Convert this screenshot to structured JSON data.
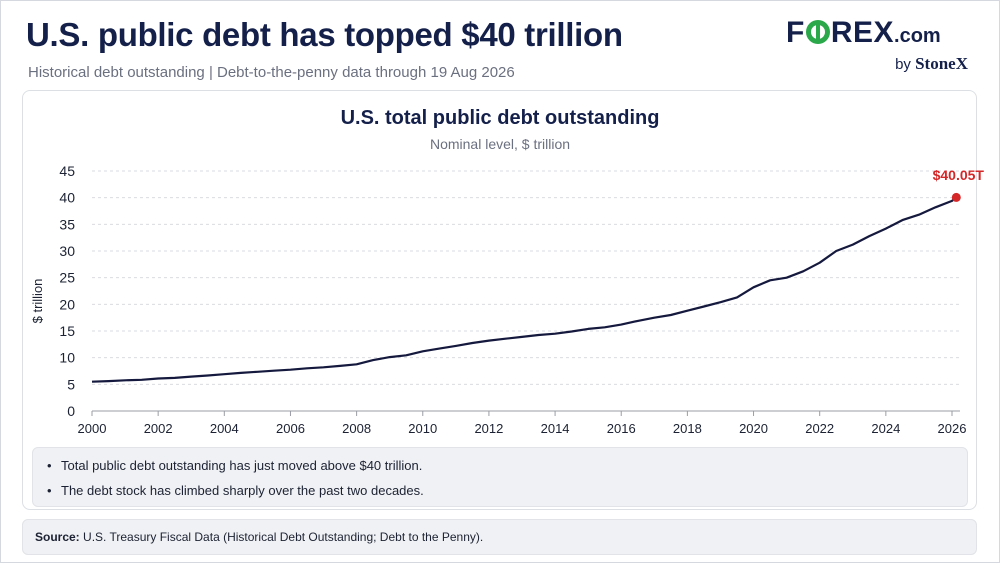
{
  "header": {
    "title": "U.S. public debt has topped $40 trillion",
    "subtitle": "Historical debt outstanding | Debt-to-the-penny data through 19 Aug 2026"
  },
  "logo": {
    "word_left": "F",
    "word_right": "REX",
    "dotcom": ".com",
    "by": "by",
    "brand": "StoneX",
    "color_navy": "#14204a",
    "color_green": "#2aa84a"
  },
  "chart_data": {
    "type": "line",
    "title": "U.S. total public debt outstanding",
    "subtitle": "Nominal level, $ trillion",
    "ylabel": "$ trillion",
    "xlabel": "",
    "xlim": [
      2000,
      2026.3
    ],
    "ylim": [
      0,
      45
    ],
    "y_ticks": [
      0,
      5,
      10,
      15,
      20,
      25,
      30,
      35,
      40,
      45
    ],
    "x_ticks": [
      2000,
      2002,
      2004,
      2006,
      2008,
      2010,
      2012,
      2014,
      2016,
      2018,
      2020,
      2022,
      2024,
      2026
    ],
    "grid": "horizontal dashed",
    "line_color": "#15193d",
    "series": [
      {
        "x": [
          2000,
          2000.5,
          2001,
          2001.5,
          2002,
          2002.5,
          2003,
          2003.5,
          2004,
          2004.5,
          2005,
          2005.5,
          2006,
          2006.5,
          2007,
          2007.5,
          2008,
          2008.5,
          2009,
          2009.5,
          2010,
          2010.5,
          2011,
          2011.5,
          2012,
          2012.5,
          2013,
          2013.5,
          2014,
          2014.5,
          2015,
          2015.5,
          2016,
          2016.5,
          2017,
          2017.5,
          2018,
          2018.5,
          2019,
          2019.5,
          2020,
          2020.5,
          2021,
          2021.5,
          2022,
          2022.5,
          2023,
          2023.5,
          2024,
          2024.5,
          2025,
          2025.5,
          2026,
          2026.13
        ],
        "y": [
          5.5,
          5.6,
          5.75,
          5.85,
          6.1,
          6.2,
          6.45,
          6.65,
          6.9,
          7.15,
          7.35,
          7.55,
          7.75,
          8.0,
          8.2,
          8.45,
          8.75,
          9.55,
          10.1,
          10.45,
          11.2,
          11.7,
          12.2,
          12.75,
          13.2,
          13.55,
          13.9,
          14.25,
          14.5,
          14.9,
          15.4,
          15.7,
          16.2,
          16.9,
          17.5,
          18.0,
          18.8,
          19.6,
          20.4,
          21.3,
          23.2,
          24.5,
          25.0,
          26.2,
          27.8,
          30.0,
          31.2,
          32.8,
          34.2,
          35.8,
          36.8,
          38.2,
          39.4,
          40.05
        ]
      }
    ],
    "annotation": {
      "label": "$40.05T",
      "x": 2026.13,
      "y": 40.05,
      "color": "#d62728"
    }
  },
  "notes": [
    "Total public debt outstanding has just moved above $40 trillion.",
    "The debt stock has climbed sharply over the past two decades."
  ],
  "source": {
    "label": "Source:",
    "text": "U.S. Treasury Fiscal Data (Historical Debt Outstanding; Debt to the Penny)."
  }
}
